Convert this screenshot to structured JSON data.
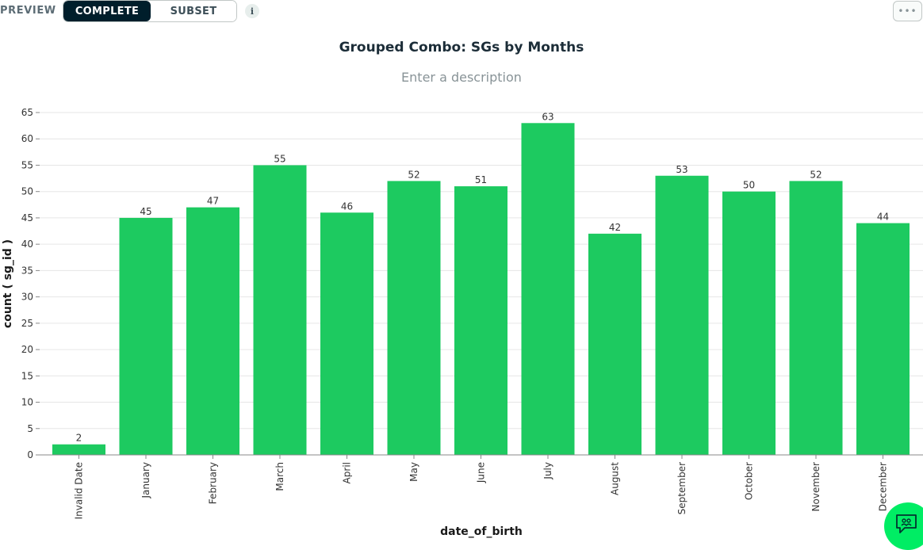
{
  "header": {
    "preview_label": "PREVIEW",
    "toggle_complete": "COMPLETE",
    "toggle_subset": "SUBSET",
    "info_icon_glyph": "i",
    "more_glyph": "•••"
  },
  "colors": {
    "bar": "#1dca60",
    "toggle_active_bg": "#001e2b",
    "chat_bubble": "#00ed64",
    "grid": "#e6e6e6"
  },
  "icons": {
    "info": "info-icon",
    "more": "ellipsis-icon",
    "chat": "chat-icon"
  },
  "description_placeholder": "Enter a description",
  "chart_data": {
    "type": "bar",
    "title": "Grouped Combo: SGs by Months",
    "xlabel": "date_of_birth",
    "ylabel": "count ( sg_id )",
    "ylim": [
      0,
      65
    ],
    "yticks": [
      0,
      5,
      10,
      15,
      20,
      25,
      30,
      35,
      40,
      45,
      50,
      55,
      60,
      65
    ],
    "grid": true,
    "data_labels": true,
    "categories": [
      "Invalid Date",
      "January",
      "February",
      "March",
      "April",
      "May",
      "June",
      "July",
      "August",
      "September",
      "October",
      "November",
      "December"
    ],
    "values": [
      2,
      45,
      47,
      55,
      46,
      52,
      51,
      63,
      42,
      53,
      50,
      52,
      44
    ]
  }
}
